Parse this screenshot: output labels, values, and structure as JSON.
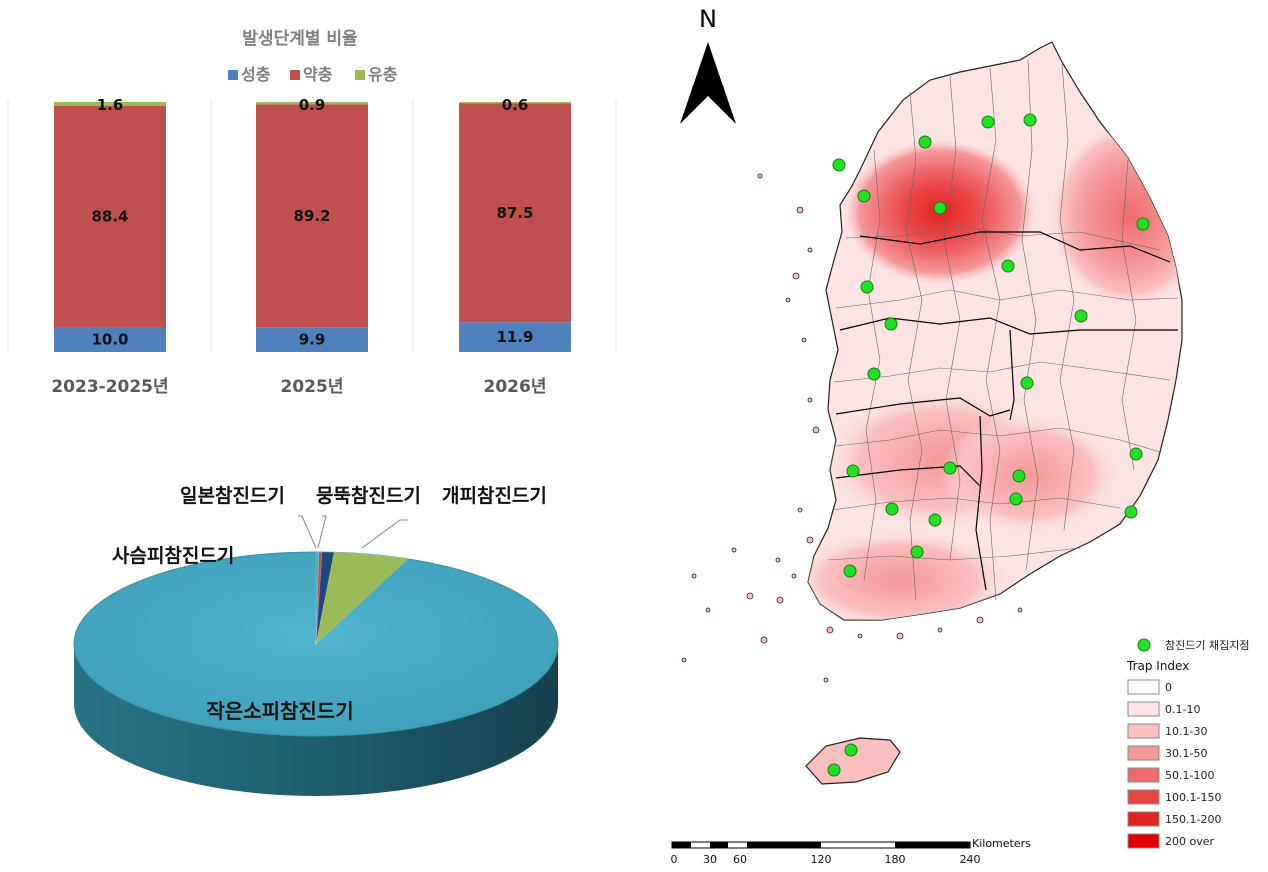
{
  "chart_data": [
    {
      "type": "bar",
      "stacked": true,
      "normalized_percent": true,
      "title": "발생단계별 비율",
      "categories": [
        "2023-2025년",
        "2025년",
        "2026년"
      ],
      "series": [
        {
          "name": "성충",
          "color": "#4f81bd",
          "values": [
            10.0,
            9.9,
            11.9
          ]
        },
        {
          "name": "약충",
          "color": "#c0504d",
          "values": [
            88.4,
            89.2,
            87.5
          ]
        },
        {
          "name": "유충",
          "color": "#9bbb59",
          "values": [
            1.6,
            0.9,
            0.6
          ]
        }
      ],
      "data_labels": [
        [
          "10.0",
          "88.4",
          "1.6"
        ],
        [
          "9.9",
          "89.2",
          "0.9"
        ],
        [
          "11.9",
          "87.5",
          "0.6"
        ]
      ],
      "legend_position": "top",
      "grid": false,
      "ylim": [
        0,
        100
      ]
    },
    {
      "type": "pie",
      "style": "3d",
      "slices": [
        {
          "label": "작은소피참진드기",
          "value": 93.8,
          "color": "#4bacc6"
        },
        {
          "label": "사슴피참진드기",
          "value": 0.2,
          "color": "#4bacc6"
        },
        {
          "label": "일본참진드기",
          "value": 0.2,
          "color": "#c0504d"
        },
        {
          "label": "뭉뚝참진드기",
          "value": 0.8,
          "color": "#1f497d"
        },
        {
          "label": "개피참진드기",
          "value": 5.0,
          "color": "#9bbb59"
        }
      ]
    }
  ],
  "map": {
    "north_label": "N",
    "legend": {
      "site_label": "참진드기 채집지점",
      "site_color": "#22e022",
      "title": "Trap Index",
      "classes": [
        {
          "label": "0",
          "color": "#ffffff"
        },
        {
          "label": "0.1-10",
          "color": "#fde3e3"
        },
        {
          "label": "10.1-30",
          "color": "#f9bfbf"
        },
        {
          "label": "30.1-50",
          "color": "#f59898"
        },
        {
          "label": "50.1-100",
          "color": "#ef6b6b"
        },
        {
          "label": "100.1-150",
          "color": "#e84444"
        },
        {
          "label": "150.1-200",
          "color": "#e42222"
        },
        {
          "label": "200 over",
          "color": "#e00000"
        }
      ]
    },
    "scale": {
      "unit": "Kilometers",
      "ticks": [
        "0",
        "30",
        "60",
        "120",
        "180",
        "240"
      ]
    }
  }
}
